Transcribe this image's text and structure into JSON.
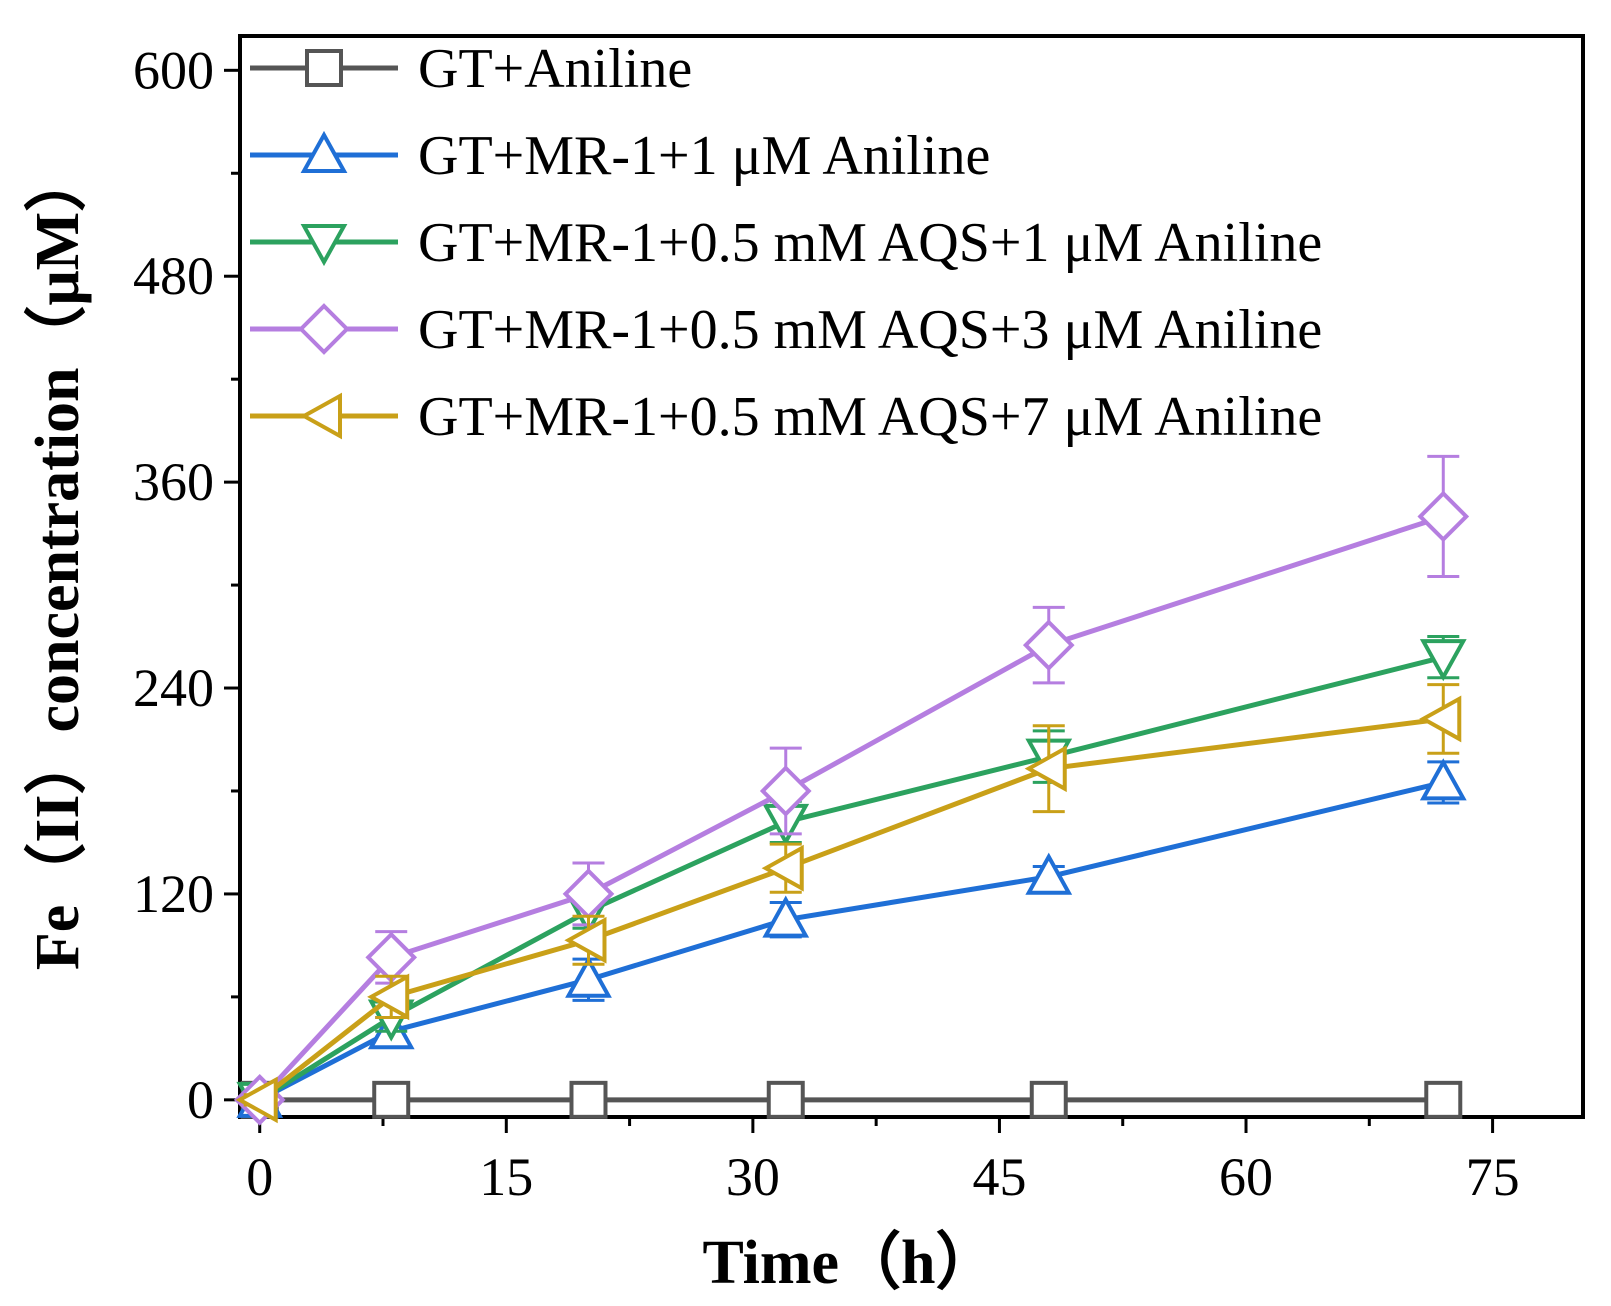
{
  "chart_data": {
    "type": "line",
    "title": "",
    "xlabel": "Time（h）",
    "ylabel": "Fe（II）concentration（μM）",
    "xlim": [
      -1.2,
      80.5
    ],
    "ylim": [
      -10,
      620
    ],
    "xticks": [
      0,
      15,
      30,
      45,
      60,
      75
    ],
    "yticks": [
      0,
      120,
      240,
      360,
      480,
      600
    ],
    "legend_position": "top-left",
    "x": [
      0,
      8,
      20,
      32,
      48,
      72
    ],
    "series": [
      {
        "name": "GT+Aniline",
        "color": "#555555",
        "marker": "square",
        "values": [
          0,
          0,
          0,
          0,
          0,
          0
        ],
        "errors": [
          0,
          0,
          0,
          0,
          0,
          0
        ]
      },
      {
        "name": "GT+MR-1+1 μM Aniline",
        "color": "#1f6fd6",
        "marker": "triangle-up",
        "values": [
          0,
          40,
          70,
          105,
          130,
          185
        ],
        "errors": [
          3,
          8,
          12,
          10,
          6,
          12
        ]
      },
      {
        "name": "GT+MR-1+0.5 mM AQS+1 μM Aniline",
        "color": "#2ca25f",
        "marker": "triangle-down",
        "values": [
          0,
          48,
          110,
          162,
          200,
          258
        ],
        "errors": [
          3,
          8,
          10,
          12,
          15,
          12
        ]
      },
      {
        "name": "GT+MR-1+0.5 mM AQS+3 μM Aniline",
        "color": "#b57ee0",
        "marker": "diamond",
        "values": [
          0,
          83,
          120,
          180,
          265,
          340
        ],
        "errors": [
          3,
          15,
          18,
          25,
          22,
          35
        ]
      },
      {
        "name": "GT+MR-1+0.5 mM AQS+7 μM Aniline",
        "color": "#c9a018",
        "marker": "triangle-left",
        "values": [
          0,
          60,
          93,
          135,
          193,
          222
        ],
        "errors": [
          3,
          12,
          14,
          14,
          25,
          20
        ]
      }
    ]
  }
}
